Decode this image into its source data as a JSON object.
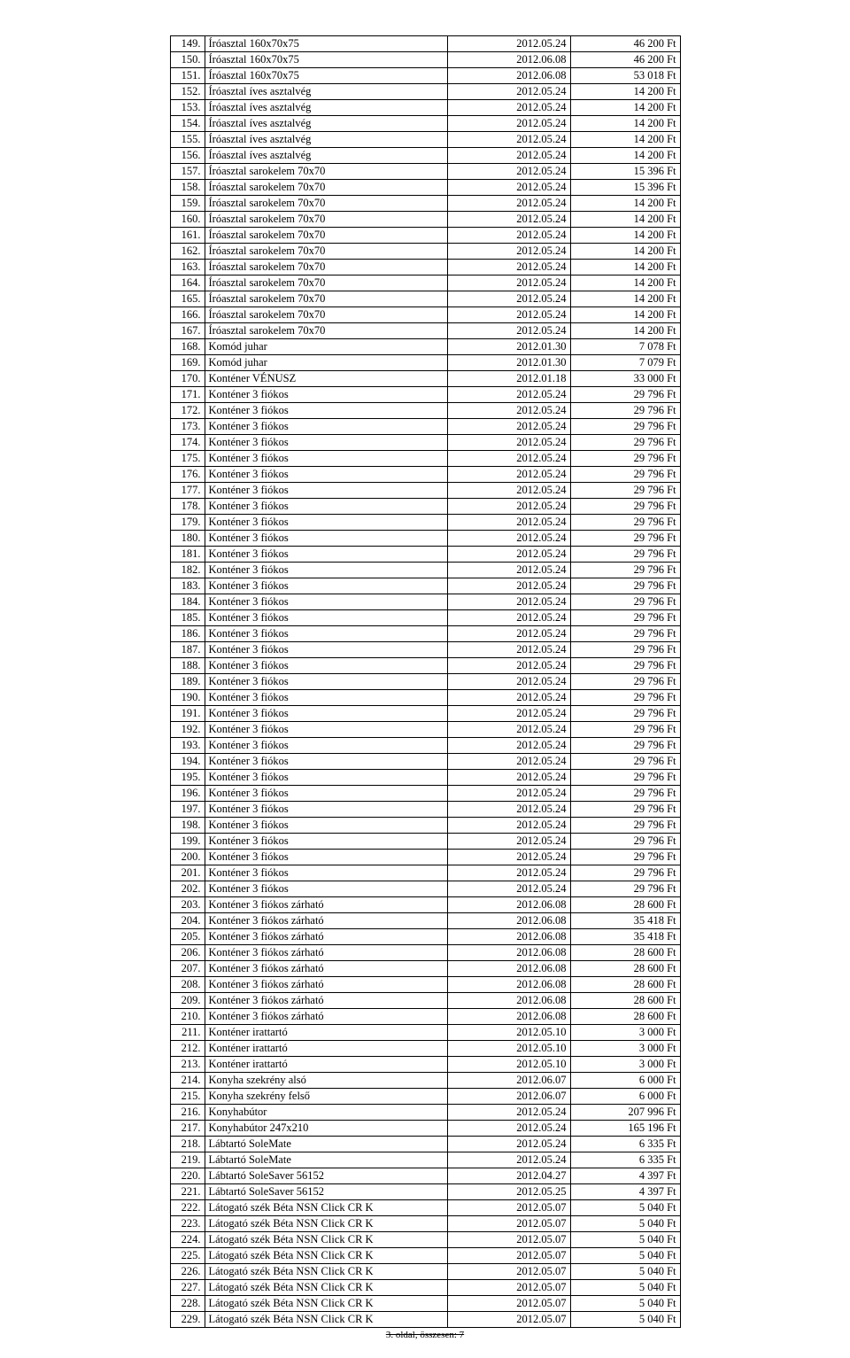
{
  "footer": "3. oldal, összesen: 7",
  "rows": [
    {
      "n": "149.",
      "d": "Íróasztal 160x70x75",
      "date": "2012.05.24",
      "p": "46 200 Ft"
    },
    {
      "n": "150.",
      "d": "Íróasztal 160x70x75",
      "date": "2012.06.08",
      "p": "46 200 Ft"
    },
    {
      "n": "151.",
      "d": "Íróasztal 160x70x75",
      "date": "2012.06.08",
      "p": "53 018 Ft"
    },
    {
      "n": "152.",
      "d": "Íróasztal íves asztalvég",
      "date": "2012.05.24",
      "p": "14 200 Ft"
    },
    {
      "n": "153.",
      "d": "Íróasztal íves asztalvég",
      "date": "2012.05.24",
      "p": "14 200 Ft"
    },
    {
      "n": "154.",
      "d": "Íróasztal íves asztalvég",
      "date": "2012.05.24",
      "p": "14 200 Ft"
    },
    {
      "n": "155.",
      "d": "Íróasztal íves asztalvég",
      "date": "2012.05.24",
      "p": "14 200 Ft"
    },
    {
      "n": "156.",
      "d": "Íróasztal íves asztalvég",
      "date": "2012.05.24",
      "p": "14 200 Ft"
    },
    {
      "n": "157.",
      "d": "Íróasztal sarokelem 70x70",
      "date": "2012.05.24",
      "p": "15 396 Ft"
    },
    {
      "n": "158.",
      "d": "Íróasztal sarokelem 70x70",
      "date": "2012.05.24",
      "p": "15 396 Ft"
    },
    {
      "n": "159.",
      "d": "Íróasztal sarokelem 70x70",
      "date": "2012.05.24",
      "p": "14 200 Ft"
    },
    {
      "n": "160.",
      "d": "Íróasztal sarokelem 70x70",
      "date": "2012.05.24",
      "p": "14 200 Ft"
    },
    {
      "n": "161.",
      "d": "Íróasztal sarokelem 70x70",
      "date": "2012.05.24",
      "p": "14 200 Ft"
    },
    {
      "n": "162.",
      "d": "Íróasztal sarokelem 70x70",
      "date": "2012.05.24",
      "p": "14 200 Ft"
    },
    {
      "n": "163.",
      "d": "Íróasztal sarokelem 70x70",
      "date": "2012.05.24",
      "p": "14 200 Ft"
    },
    {
      "n": "164.",
      "d": "Íróasztal sarokelem 70x70",
      "date": "2012.05.24",
      "p": "14 200 Ft"
    },
    {
      "n": "165.",
      "d": "Íróasztal sarokelem 70x70",
      "date": "2012.05.24",
      "p": "14 200 Ft"
    },
    {
      "n": "166.",
      "d": "Íróasztal sarokelem 70x70",
      "date": "2012.05.24",
      "p": "14 200 Ft"
    },
    {
      "n": "167.",
      "d": "Íróasztal sarokelem 70x70",
      "date": "2012.05.24",
      "p": "14 200 Ft"
    },
    {
      "n": "168.",
      "d": "Komód juhar",
      "date": "2012.01.30",
      "p": "7 078 Ft"
    },
    {
      "n": "169.",
      "d": "Komód juhar",
      "date": "2012.01.30",
      "p": "7 079 Ft"
    },
    {
      "n": "170.",
      "d": "Konténer VÉNUSZ",
      "date": "2012.01.18",
      "p": "33 000 Ft"
    },
    {
      "n": "171.",
      "d": "Konténer 3 fiókos",
      "date": "2012.05.24",
      "p": "29 796 Ft"
    },
    {
      "n": "172.",
      "d": "Konténer 3 fiókos",
      "date": "2012.05.24",
      "p": "29 796 Ft"
    },
    {
      "n": "173.",
      "d": "Konténer 3 fiókos",
      "date": "2012.05.24",
      "p": "29 796 Ft"
    },
    {
      "n": "174.",
      "d": "Konténer 3 fiókos",
      "date": "2012.05.24",
      "p": "29 796 Ft"
    },
    {
      "n": "175.",
      "d": "Konténer 3 fiókos",
      "date": "2012.05.24",
      "p": "29 796 Ft"
    },
    {
      "n": "176.",
      "d": "Konténer 3 fiókos",
      "date": "2012.05.24",
      "p": "29 796 Ft"
    },
    {
      "n": "177.",
      "d": "Konténer 3 fiókos",
      "date": "2012.05.24",
      "p": "29 796 Ft"
    },
    {
      "n": "178.",
      "d": "Konténer 3 fiókos",
      "date": "2012.05.24",
      "p": "29 796 Ft"
    },
    {
      "n": "179.",
      "d": "Konténer 3 fiókos",
      "date": "2012.05.24",
      "p": "29 796 Ft"
    },
    {
      "n": "180.",
      "d": "Konténer 3 fiókos",
      "date": "2012.05.24",
      "p": "29 796 Ft"
    },
    {
      "n": "181.",
      "d": "Konténer 3 fiókos",
      "date": "2012.05.24",
      "p": "29 796 Ft"
    },
    {
      "n": "182.",
      "d": "Konténer 3 fiókos",
      "date": "2012.05.24",
      "p": "29 796 Ft"
    },
    {
      "n": "183.",
      "d": "Konténer 3 fiókos",
      "date": "2012.05.24",
      "p": "29 796 Ft"
    },
    {
      "n": "184.",
      "d": "Konténer 3 fiókos",
      "date": "2012.05.24",
      "p": "29 796 Ft"
    },
    {
      "n": "185.",
      "d": "Konténer 3 fiókos",
      "date": "2012.05.24",
      "p": "29 796 Ft"
    },
    {
      "n": "186.",
      "d": "Konténer 3 fiókos",
      "date": "2012.05.24",
      "p": "29 796 Ft"
    },
    {
      "n": "187.",
      "d": "Konténer 3 fiókos",
      "date": "2012.05.24",
      "p": "29 796 Ft"
    },
    {
      "n": "188.",
      "d": "Konténer 3 fiókos",
      "date": "2012.05.24",
      "p": "29 796 Ft"
    },
    {
      "n": "189.",
      "d": "Konténer 3 fiókos",
      "date": "2012.05.24",
      "p": "29 796 Ft"
    },
    {
      "n": "190.",
      "d": "Konténer 3 fiókos",
      "date": "2012.05.24",
      "p": "29 796 Ft"
    },
    {
      "n": "191.",
      "d": "Konténer 3 fiókos",
      "date": "2012.05.24",
      "p": "29 796 Ft"
    },
    {
      "n": "192.",
      "d": "Konténer 3 fiókos",
      "date": "2012.05.24",
      "p": "29 796 Ft"
    },
    {
      "n": "193.",
      "d": "Konténer 3 fiókos",
      "date": "2012.05.24",
      "p": "29 796 Ft"
    },
    {
      "n": "194.",
      "d": "Konténer 3 fiókos",
      "date": "2012.05.24",
      "p": "29 796 Ft"
    },
    {
      "n": "195.",
      "d": "Konténer 3 fiókos",
      "date": "2012.05.24",
      "p": "29 796 Ft"
    },
    {
      "n": "196.",
      "d": "Konténer 3 fiókos",
      "date": "2012.05.24",
      "p": "29 796 Ft"
    },
    {
      "n": "197.",
      "d": "Konténer 3 fiókos",
      "date": "2012.05.24",
      "p": "29 796 Ft"
    },
    {
      "n": "198.",
      "d": "Konténer 3 fiókos",
      "date": "2012.05.24",
      "p": "29 796 Ft"
    },
    {
      "n": "199.",
      "d": "Konténer 3 fiókos",
      "date": "2012.05.24",
      "p": "29 796 Ft"
    },
    {
      "n": "200.",
      "d": "Konténer 3 fiókos",
      "date": "2012.05.24",
      "p": "29 796 Ft"
    },
    {
      "n": "201.",
      "d": "Konténer 3 fiókos",
      "date": "2012.05.24",
      "p": "29 796 Ft"
    },
    {
      "n": "202.",
      "d": "Konténer 3 fiókos",
      "date": "2012.05.24",
      "p": "29 796 Ft"
    },
    {
      "n": "203.",
      "d": "Konténer 3 fiókos zárható",
      "date": "2012.06.08",
      "p": "28 600 Ft"
    },
    {
      "n": "204.",
      "d": "Konténer 3 fiókos zárható",
      "date": "2012.06.08",
      "p": "35 418 Ft"
    },
    {
      "n": "205.",
      "d": "Konténer 3 fiókos zárható",
      "date": "2012.06.08",
      "p": "35 418 Ft"
    },
    {
      "n": "206.",
      "d": "Konténer 3 fiókos zárható",
      "date": "2012.06.08",
      "p": "28 600 Ft"
    },
    {
      "n": "207.",
      "d": "Konténer 3 fiókos zárható",
      "date": "2012.06.08",
      "p": "28 600 Ft"
    },
    {
      "n": "208.",
      "d": "Konténer 3 fiókos zárható",
      "date": "2012.06.08",
      "p": "28 600 Ft"
    },
    {
      "n": "209.",
      "d": "Konténer 3 fiókos zárható",
      "date": "2012.06.08",
      "p": "28 600 Ft"
    },
    {
      "n": "210.",
      "d": "Konténer 3 fiókos zárható",
      "date": "2012.06.08",
      "p": "28 600 Ft"
    },
    {
      "n": "211.",
      "d": "Konténer irattartó",
      "date": "2012.05.10",
      "p": "3 000 Ft"
    },
    {
      "n": "212.",
      "d": "Konténer irattartó",
      "date": "2012.05.10",
      "p": "3 000 Ft"
    },
    {
      "n": "213.",
      "d": "Konténer irattartó",
      "date": "2012.05.10",
      "p": "3 000 Ft"
    },
    {
      "n": "214.",
      "d": "Konyha szekrény alsó",
      "date": "2012.06.07",
      "p": "6 000 Ft"
    },
    {
      "n": "215.",
      "d": "Konyha szekrény felső",
      "date": "2012.06.07",
      "p": "6 000 Ft"
    },
    {
      "n": "216.",
      "d": "Konyhabútor",
      "date": "2012.05.24",
      "p": "207 996 Ft"
    },
    {
      "n": "217.",
      "d": "Konyhabútor 247x210",
      "date": "2012.05.24",
      "p": "165 196 Ft"
    },
    {
      "n": "218.",
      "d": "Lábtartó SoleMate",
      "date": "2012.05.24",
      "p": "6 335 Ft"
    },
    {
      "n": "219.",
      "d": "Lábtartó SoleMate",
      "date": "2012.05.24",
      "p": "6 335 Ft"
    },
    {
      "n": "220.",
      "d": "Lábtartó SoleSaver 56152",
      "date": "2012.04.27",
      "p": "4 397 Ft"
    },
    {
      "n": "221.",
      "d": "Lábtartó SoleSaver 56152",
      "date": "2012.05.25",
      "p": "4 397 Ft"
    },
    {
      "n": "222.",
      "d": "Látogató szék Béta NSN Click CR K",
      "date": "2012.05.07",
      "p": "5 040 Ft"
    },
    {
      "n": "223.",
      "d": "Látogató szék Béta NSN Click CR K",
      "date": "2012.05.07",
      "p": "5 040 Ft"
    },
    {
      "n": "224.",
      "d": "Látogató szék Béta NSN Click CR K",
      "date": "2012.05.07",
      "p": "5 040 Ft"
    },
    {
      "n": "225.",
      "d": "Látogató szék Béta NSN Click CR K",
      "date": "2012.05.07",
      "p": "5 040 Ft"
    },
    {
      "n": "226.",
      "d": "Látogató szék Béta NSN Click CR K",
      "date": "2012.05.07",
      "p": "5 040 Ft"
    },
    {
      "n": "227.",
      "d": "Látogató szék Béta NSN Click CR K",
      "date": "2012.05.07",
      "p": "5 040 Ft"
    },
    {
      "n": "228.",
      "d": "Látogató szék Béta NSN Click CR K",
      "date": "2012.05.07",
      "p": "5 040 Ft"
    },
    {
      "n": "229.",
      "d": "Látogató szék Béta NSN Click CR K",
      "date": "2012.05.07",
      "p": "5 040 Ft"
    }
  ]
}
